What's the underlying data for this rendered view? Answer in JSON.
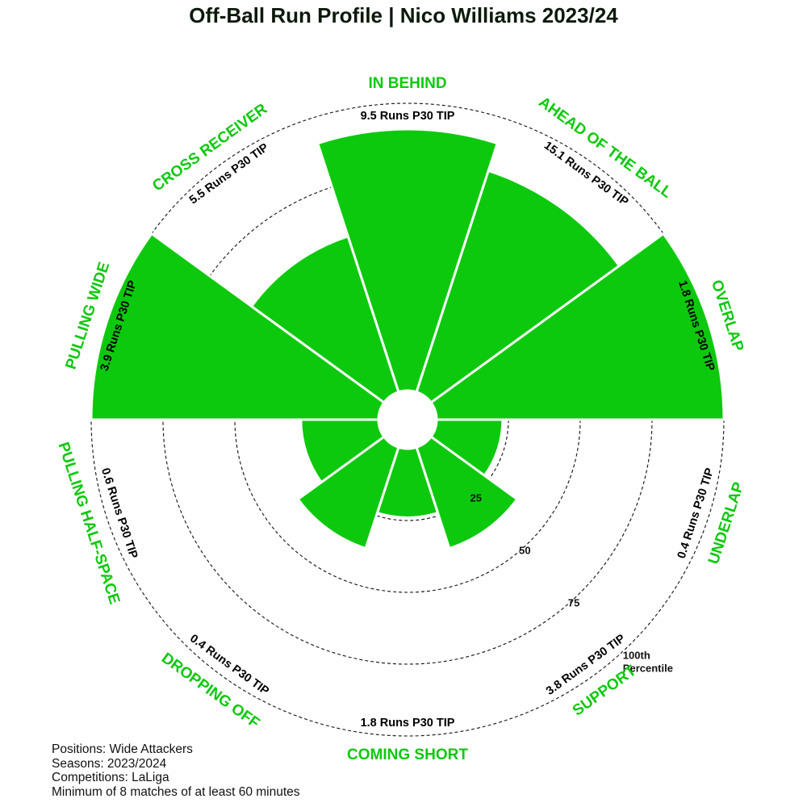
{
  "title": "Off-Ball Run Profile | Nico Williams 2023/24",
  "chart_data": {
    "type": "polar-bar",
    "title": "Off-Ball Run Profile | Nico Williams 2023/24",
    "categories": [
      "IN BEHIND",
      "AHEAD OF THE BALL",
      "OVERLAP",
      "UNDERLAP",
      "SUPPORT",
      "COMING SHORT",
      "DROPPING OFF",
      "PULLING HALF-SPACE",
      "PULLING WIDE",
      "CROSS RECEIVER"
    ],
    "value_labels": [
      "9.5 Runs P30 TIP",
      "15.1 Runs P30 TIP",
      "1.8 Runs P30 TIP",
      "0.4 Runs P30 TIP",
      "3.8 Runs P30 TIP",
      "1.8 Runs P30 TIP",
      "0.4 Runs P30 TIP",
      "0.6 Runs P30 TIP",
      "3.9 Runs P30 TIP",
      "5.5 Runs P30 TIP"
    ],
    "percentiles": [
      91,
      81,
      100,
      23,
      37,
      24,
      37,
      27,
      100,
      57
    ],
    "radial_ticks": [
      {
        "value": 25,
        "label": "25"
      },
      {
        "value": 50,
        "label": "50"
      },
      {
        "value": 75,
        "label": "75"
      },
      {
        "value": 100,
        "label": "100th"
      }
    ],
    "radial_tick_suffix": "Percentile",
    "rlim": [
      0,
      100
    ],
    "bar_color": "#0dc90d",
    "label_color": "#0dc90d",
    "value_label_color": "#000000"
  },
  "footer": {
    "lines": [
      "Positions: Wide Attackers",
      "Seasons: 2023/2024",
      "Competitions: LaLiga",
      "Minimum of 8 matches of at least 60 minutes"
    ]
  }
}
